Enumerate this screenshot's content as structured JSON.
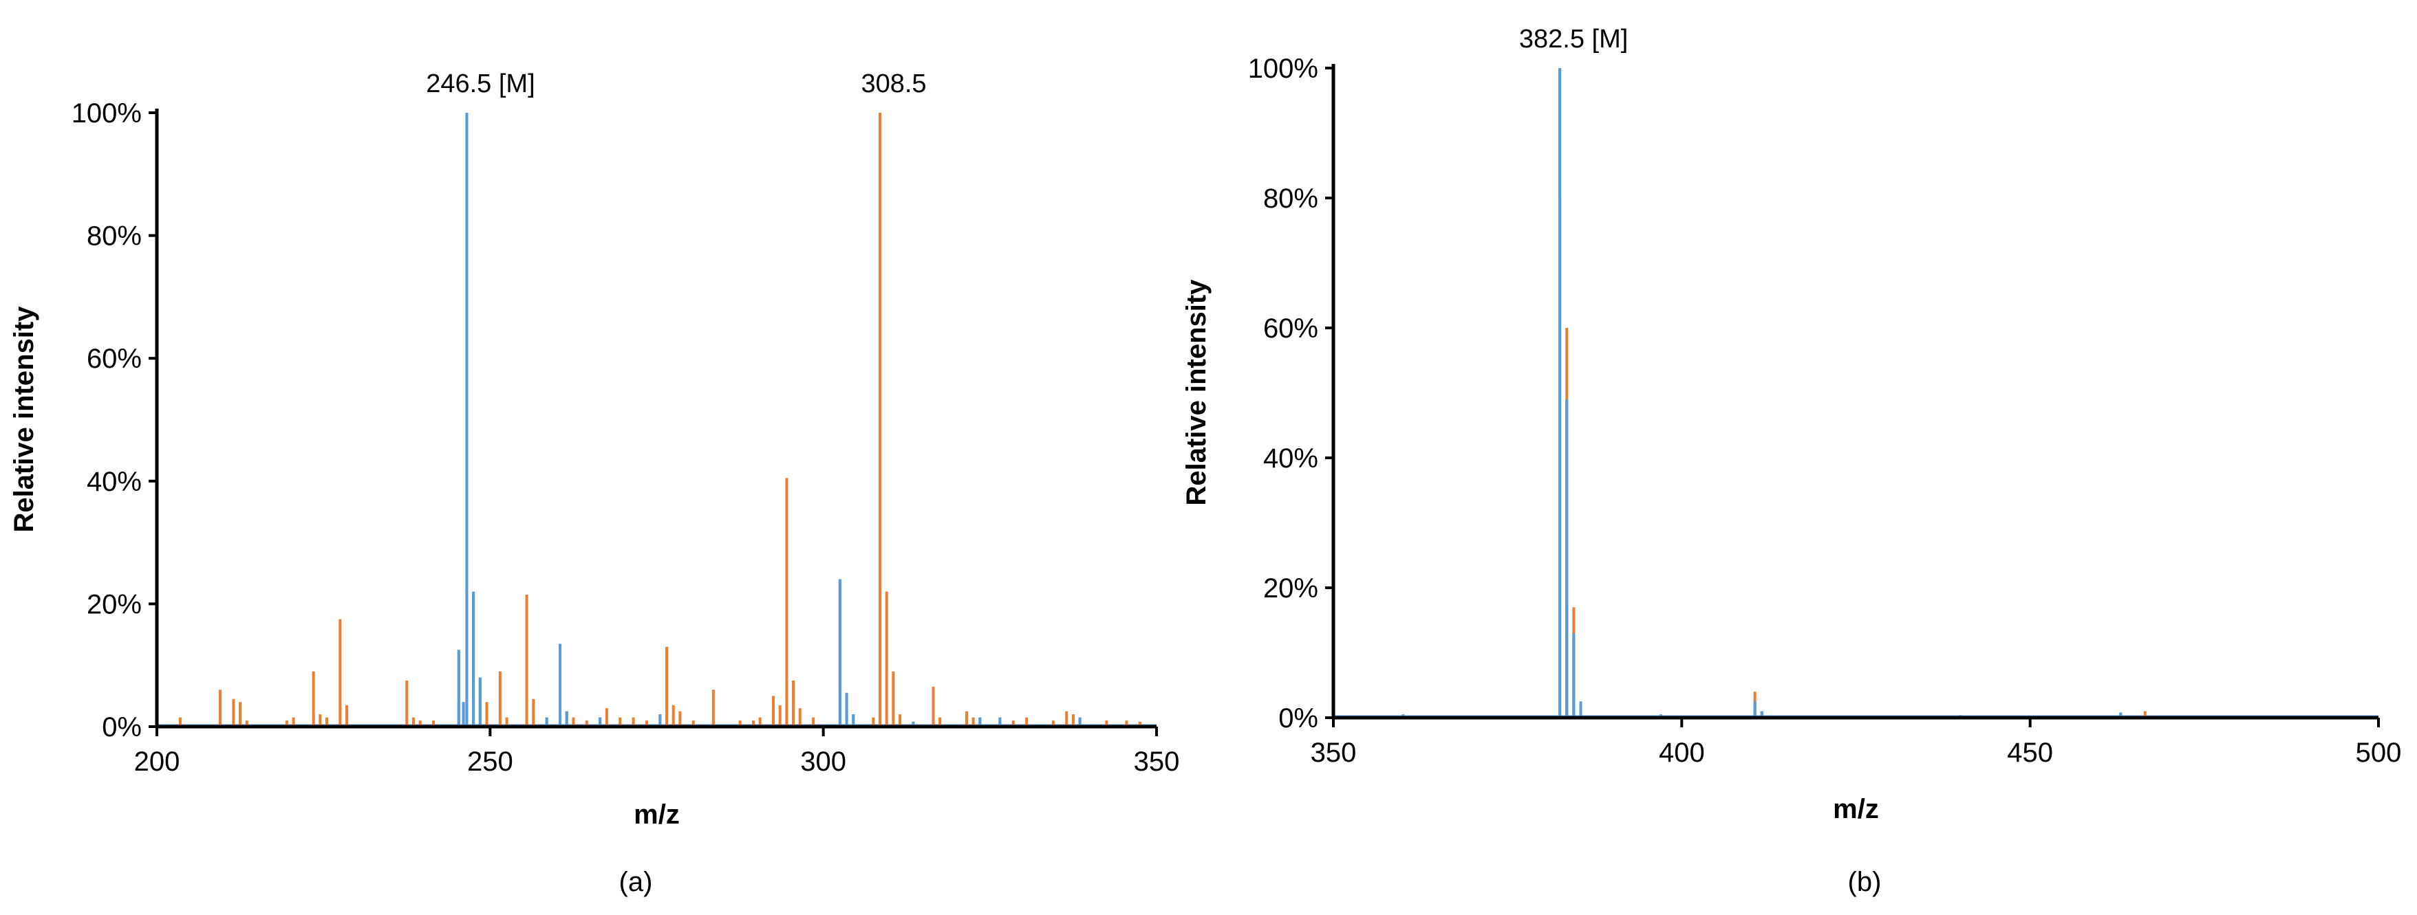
{
  "colors": {
    "series1": "#5b9bd5",
    "series2": "#ed7d31",
    "axis": "#000000"
  },
  "chart_data": [
    {
      "type": "bar",
      "panel_label": "(a)",
      "xlabel": "m/z",
      "ylabel": "Relative intensity",
      "xlim": [
        200,
        350
      ],
      "ylim": [
        0,
        100
      ],
      "x_ticks": [
        200,
        250,
        300,
        350
      ],
      "y_ticks": [
        0,
        20,
        40,
        60,
        80,
        100
      ],
      "y_tick_labels": [
        "0%",
        "20%",
        "40%",
        "60%",
        "80%",
        "100%"
      ],
      "grid": false,
      "legend": "none",
      "annotations": [
        {
          "text": "246.5 [M]",
          "x": 246.5,
          "y": 100
        },
        {
          "text": "308.5",
          "x": 308.5,
          "y": 100
        }
      ],
      "series": [
        {
          "color": "#5b9bd5",
          "peaks": [
            [
              245.3,
              12.5
            ],
            [
              246.0,
              4.0
            ],
            [
              246.5,
              100
            ],
            [
              247.5,
              22
            ],
            [
              248.5,
              8
            ],
            [
              258.5,
              1.5
            ],
            [
              260.5,
              13.5
            ],
            [
              261.5,
              2.5
            ],
            [
              266.5,
              1.5
            ],
            [
              275.5,
              2
            ],
            [
              302.5,
              24
            ],
            [
              303.5,
              5.5
            ],
            [
              304.5,
              2
            ],
            [
              313.5,
              0.8
            ],
            [
              323.5,
              1.5
            ],
            [
              326.5,
              1.5
            ],
            [
              338.5,
              1.5
            ]
          ]
        },
        {
          "color": "#ed7d31",
          "peaks": [
            [
              203.5,
              1.5
            ],
            [
              209.5,
              6
            ],
            [
              211.5,
              4.5
            ],
            [
              212.5,
              4
            ],
            [
              213.5,
              1
            ],
            [
              219.5,
              1
            ],
            [
              220.5,
              1.5
            ],
            [
              223.5,
              9
            ],
            [
              224.5,
              2
            ],
            [
              225.5,
              1.5
            ],
            [
              227.5,
              17.5
            ],
            [
              228.5,
              3.5
            ],
            [
              237.5,
              7.5
            ],
            [
              238.5,
              1.5
            ],
            [
              239.5,
              1
            ],
            [
              241.5,
              1
            ],
            [
              249.5,
              4
            ],
            [
              251.5,
              9
            ],
            [
              252.5,
              1.5
            ],
            [
              255.5,
              21.5
            ],
            [
              256.5,
              4.5
            ],
            [
              262.5,
              1.5
            ],
            [
              264.5,
              1
            ],
            [
              267.5,
              3
            ],
            [
              269.5,
              1.5
            ],
            [
              271.5,
              1.5
            ],
            [
              273.5,
              1
            ],
            [
              276.5,
              13
            ],
            [
              277.5,
              3.5
            ],
            [
              278.5,
              2.5
            ],
            [
              280.5,
              1
            ],
            [
              283.5,
              6
            ],
            [
              287.5,
              1
            ],
            [
              289.5,
              1
            ],
            [
              290.5,
              1.5
            ],
            [
              292.5,
              5
            ],
            [
              293.5,
              3.5
            ],
            [
              294.5,
              40.5
            ],
            [
              295.5,
              7.5
            ],
            [
              296.5,
              3
            ],
            [
              298.5,
              1.5
            ],
            [
              307.5,
              1.5
            ],
            [
              308.5,
              100
            ],
            [
              309.5,
              22
            ],
            [
              310.5,
              9
            ],
            [
              311.5,
              2
            ],
            [
              316.5,
              6.5
            ],
            [
              317.5,
              1.5
            ],
            [
              321.5,
              2.5
            ],
            [
              322.5,
              1.5
            ],
            [
              328.5,
              1
            ],
            [
              330.5,
              1.5
            ],
            [
              334.5,
              1
            ],
            [
              336.5,
              2.5
            ],
            [
              337.5,
              2
            ],
            [
              342.5,
              1
            ],
            [
              345.5,
              1
            ],
            [
              347.5,
              0.8
            ]
          ]
        }
      ]
    },
    {
      "type": "bar",
      "panel_label": "(b)",
      "xlabel": "m/z",
      "ylabel": "Relative intensity",
      "xlim": [
        350,
        500
      ],
      "ylim": [
        0,
        100
      ],
      "x_ticks": [
        350,
        400,
        450,
        500
      ],
      "y_ticks": [
        0,
        20,
        40,
        60,
        80,
        100
      ],
      "y_tick_labels": [
        "0%",
        "20%",
        "40%",
        "60%",
        "80%",
        "100%"
      ],
      "grid": false,
      "legend": "none",
      "annotations": [
        {
          "text": "382.5 [M]",
          "x": 382.5,
          "y": 100
        }
      ],
      "series": [
        {
          "color": "#5b9bd5",
          "peaks": [
            [
              382.5,
              100
            ],
            [
              383.5,
              49
            ],
            [
              384.5,
              13
            ],
            [
              385.5,
              2.5
            ],
            [
              410.5,
              2.5
            ],
            [
              411.5,
              1
            ],
            [
              360,
              0.5
            ],
            [
              397,
              0.5
            ],
            [
              440,
              0.4
            ],
            [
              463,
              0.8
            ]
          ]
        },
        {
          "color": "#ed7d31",
          "peaks": [
            [
              382.5,
              80
            ],
            [
              383.5,
              60
            ],
            [
              384.5,
              17
            ],
            [
              385.5,
              1.5
            ],
            [
              410.5,
              4
            ],
            [
              411.5,
              1
            ],
            [
              466.5,
              1
            ]
          ]
        }
      ]
    }
  ]
}
